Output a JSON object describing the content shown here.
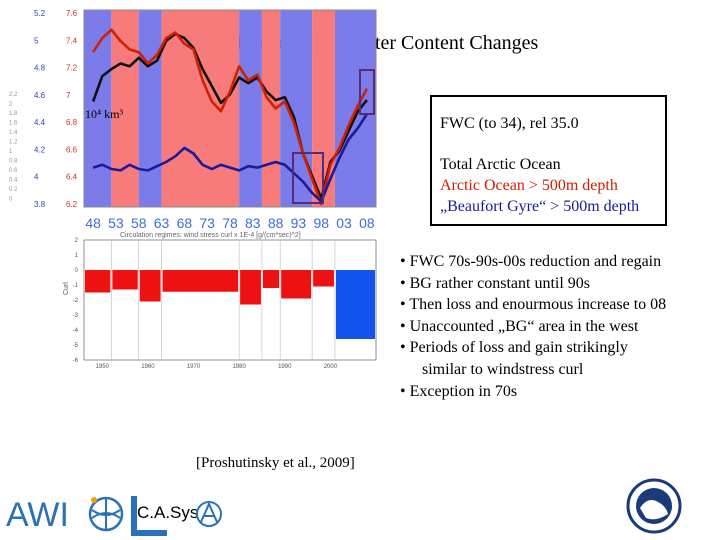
{
  "title": "Arctic Decadal Freshwater Content Changes",
  "legend": {
    "fwc": "FWC (to 34), rel 35.0",
    "total": "Total Arctic Ocean",
    "arctic500": "Arctic Ocean > 500m depth",
    "bg": "„Beaufort Gyre“ > 500m depth"
  },
  "bullets": [
    "• FWC 70s-90s-00s reduction and regain",
    "• BG rather constant until 90s",
    "• Then loss and enourmous increase to 08",
    "• Unaccounted „BG“ area in the west",
    "• Periods of loss and gain strikingly",
    "similar to windstress curl",
    "• Exception in 70s"
  ],
  "citation": "[Proshutinsky et al., 2009]",
  "logos": {
    "awi": "AWI",
    "cas": "C.A.Sys"
  },
  "colors": {
    "red_phase": "#f87b7b",
    "blue_phase": "#7b7bea",
    "bar_red": "#ee1111",
    "bar_blue": "#1155ee"
  },
  "chart_data": [
    {
      "type": "line",
      "title": "",
      "unit_label": "10⁴ km³",
      "x_tick_labels": [
        "48",
        "53",
        "58",
        "63",
        "68",
        "73",
        "78",
        "83",
        "88",
        "93",
        "98",
        "03",
        "08"
      ],
      "x_tick_years": [
        1948,
        1953,
        1958,
        1963,
        1968,
        1973,
        1978,
        1983,
        1988,
        1993,
        1998,
        2003,
        2008
      ],
      "x_range": [
        1946,
        2010
      ],
      "left_axis_1": {
        "ticks": [
          "5.2",
          "5",
          "4.8",
          "4.6",
          "4.4",
          "4.2",
          "4",
          "3.8"
        ],
        "range": [
          3.8,
          5.2
        ]
      },
      "left_axis_2": {
        "ticks": [
          "7.6",
          "7.4",
          "7.2",
          "7",
          "6.8",
          "6.6",
          "6.4",
          "6.2"
        ],
        "range": [
          6.2,
          7.6
        ]
      },
      "far_left_axis": {
        "ticks": [
          "2.2",
          "2",
          "1.8",
          "1.6",
          "1.4",
          "1.2",
          "1",
          "0.8",
          "0.6",
          "0.4",
          "0.2",
          "0"
        ]
      },
      "phases": [
        {
          "from": 1946,
          "to": 1952,
          "phase": "blue"
        },
        {
          "from": 1952,
          "to": 1958,
          "phase": "red"
        },
        {
          "from": 1958,
          "to": 1963,
          "phase": "blue"
        },
        {
          "from": 1963,
          "to": 1980,
          "phase": "red"
        },
        {
          "from": 1980,
          "to": 1985,
          "phase": "blue"
        },
        {
          "from": 1985,
          "to": 1989,
          "phase": "red"
        },
        {
          "from": 1989,
          "to": 1996,
          "phase": "blue"
        },
        {
          "from": 1996,
          "to": 2001,
          "phase": "red"
        },
        {
          "from": 2001,
          "to": 2010,
          "phase": "blue"
        }
      ],
      "series": [
        {
          "name": "Total Arctic Ocean",
          "color": "#111111",
          "axis": "left_axis_1",
          "x": [
            1948,
            1950,
            1952,
            1954,
            1956,
            1958,
            1960,
            1962,
            1964,
            1966,
            1968,
            1970,
            1972,
            1974,
            1976,
            1978,
            1980,
            1982,
            1984,
            1986,
            1988,
            1990,
            1992,
            1994,
            1996,
            1998,
            2000,
            2002,
            2004,
            2006,
            2008
          ],
          "values": [
            4.55,
            4.73,
            4.78,
            4.82,
            4.8,
            4.86,
            4.8,
            4.84,
            4.98,
            5.03,
            5.0,
            4.93,
            4.78,
            4.66,
            4.54,
            4.6,
            4.72,
            4.68,
            4.72,
            4.62,
            4.56,
            4.58,
            4.44,
            4.18,
            4.02,
            3.86,
            4.12,
            4.2,
            4.34,
            4.48,
            4.56
          ]
        },
        {
          "name": "Arctic Ocean > 500m depth",
          "color": "#d02000",
          "axis": "left_axis_2",
          "x": [
            1948,
            1950,
            1952,
            1954,
            1956,
            1958,
            1960,
            1962,
            1964,
            1966,
            1968,
            1970,
            1972,
            1974,
            1976,
            1978,
            1980,
            1982,
            1984,
            1986,
            1988,
            1990,
            1992,
            1994,
            1996,
            1998,
            2000,
            2002,
            2004,
            2006,
            2008
          ],
          "values": [
            7.3,
            7.4,
            7.46,
            7.38,
            7.32,
            7.3,
            7.22,
            7.28,
            7.4,
            7.44,
            7.36,
            7.32,
            7.1,
            6.95,
            6.88,
            7.02,
            7.2,
            7.1,
            7.14,
            6.98,
            6.9,
            6.95,
            6.8,
            6.58,
            6.4,
            6.22,
            6.5,
            6.62,
            6.78,
            6.92,
            7.04
          ]
        },
        {
          "name": "„Beaufort Gyre“ > 500m depth",
          "color": "#1a1a9a",
          "axis": "left_axis_2",
          "x": [
            1948,
            1950,
            1952,
            1954,
            1956,
            1958,
            1960,
            1962,
            1964,
            1966,
            1968,
            1970,
            1972,
            1974,
            1976,
            1978,
            1980,
            1982,
            1984,
            1986,
            1988,
            1990,
            1992,
            1994,
            1996,
            1998,
            2000,
            2002,
            2004,
            2006,
            2008
          ],
          "values": [
            6.48,
            6.5,
            6.47,
            6.46,
            6.5,
            6.47,
            6.46,
            6.49,
            6.52,
            6.56,
            6.62,
            6.58,
            6.5,
            6.47,
            6.5,
            6.48,
            6.46,
            6.49,
            6.48,
            6.5,
            6.52,
            6.5,
            6.44,
            6.38,
            6.3,
            6.24,
            6.4,
            6.55,
            6.68,
            6.76,
            6.86
          ]
        }
      ]
    },
    {
      "type": "bar",
      "title": "Circulation regimes: wind stress curl x 1E-4 [g/(cm*sec)^2]",
      "ylabel": "Curl",
      "y_ticks": [
        "2",
        "1",
        "0",
        "-1",
        "-2",
        "-3",
        "-4",
        "-5",
        "-6"
      ],
      "ylim": [
        -6,
        2
      ],
      "x_tick_labels": [
        "1950",
        "1960",
        "1970",
        "1980",
        "1990",
        "2000"
      ],
      "x_range": [
        1946,
        2010
      ],
      "bars": [
        {
          "from": 1946,
          "to": 1952,
          "value": -1.5
        },
        {
          "from": 1952,
          "to": 1958,
          "value": -1.3
        },
        {
          "from": 1958,
          "to": 1963,
          "value": -2.1
        },
        {
          "from": 1963,
          "to": 1980,
          "value": -1.45
        },
        {
          "from": 1980,
          "to": 1985,
          "value": -2.3
        },
        {
          "from": 1985,
          "to": 1989,
          "value": -1.2
        },
        {
          "from": 1989,
          "to": 1996,
          "value": -1.9
        },
        {
          "from": 1996,
          "to": 2001,
          "value": -1.1
        },
        {
          "from": 2001,
          "to": 2010,
          "value": -4.6
        }
      ]
    }
  ]
}
